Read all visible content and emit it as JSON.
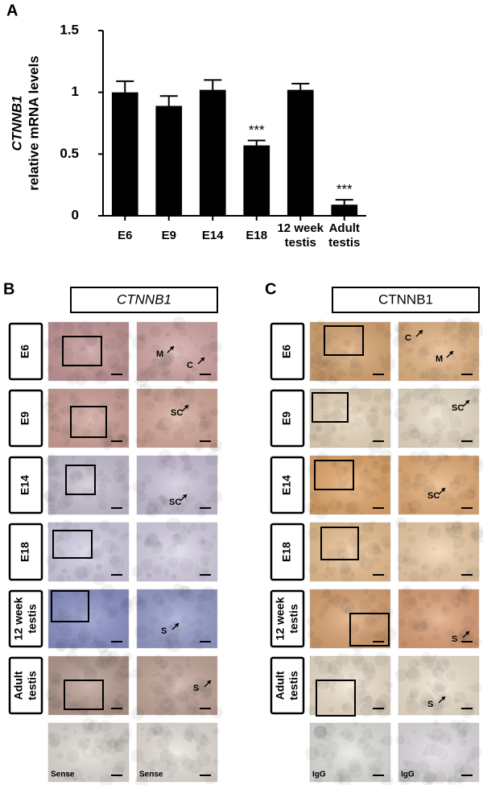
{
  "chart_data": {
    "type": "bar",
    "panel_label": "A",
    "ylabel_gene": "CTNNB1",
    "ylabel": "relative mRNA levels",
    "categories": [
      "E6",
      "E9",
      "E14",
      "E18",
      "12 week testis",
      "Adult testis"
    ],
    "values": [
      1.0,
      0.89,
      1.02,
      0.57,
      1.02,
      0.09
    ],
    "errors": [
      0.09,
      0.08,
      0.08,
      0.04,
      0.05,
      0.04
    ],
    "significance": [
      null,
      null,
      null,
      "***",
      null,
      "***"
    ],
    "color": "#000000",
    "ylim": [
      0,
      1.5
    ],
    "yticks": [
      0,
      0.5,
      1,
      1.5
    ],
    "grid": false
  },
  "panels": [
    {
      "label": "B",
      "header": "CTNNB1",
      "header_italic": true,
      "control_label": "Sense",
      "rows": [
        {
          "label": "E6",
          "annotations": [
            "M",
            "C"
          ]
        },
        {
          "label": "E9",
          "annotations": [
            "SC"
          ]
        },
        {
          "label": "E14",
          "annotations": [
            "SC"
          ]
        },
        {
          "label": "E18",
          "annotations": []
        },
        {
          "label": "12 week testis",
          "annotations": [
            "S"
          ]
        },
        {
          "label": "Adult testis",
          "annotations": [
            "S"
          ]
        }
      ]
    },
    {
      "label": "C",
      "header": "CTNNB1",
      "header_italic": false,
      "control_label": "IgG",
      "rows": [
        {
          "label": "E6",
          "annotations": [
            "C",
            "M"
          ]
        },
        {
          "label": "E9",
          "annotations": [
            "SC"
          ]
        },
        {
          "label": "E14",
          "annotations": [
            "SC"
          ]
        },
        {
          "label": "E18",
          "annotations": []
        },
        {
          "label": "12 week testis",
          "annotations": [
            "S"
          ]
        },
        {
          "label": "Adult testis",
          "annotations": [
            "S"
          ]
        }
      ]
    }
  ]
}
